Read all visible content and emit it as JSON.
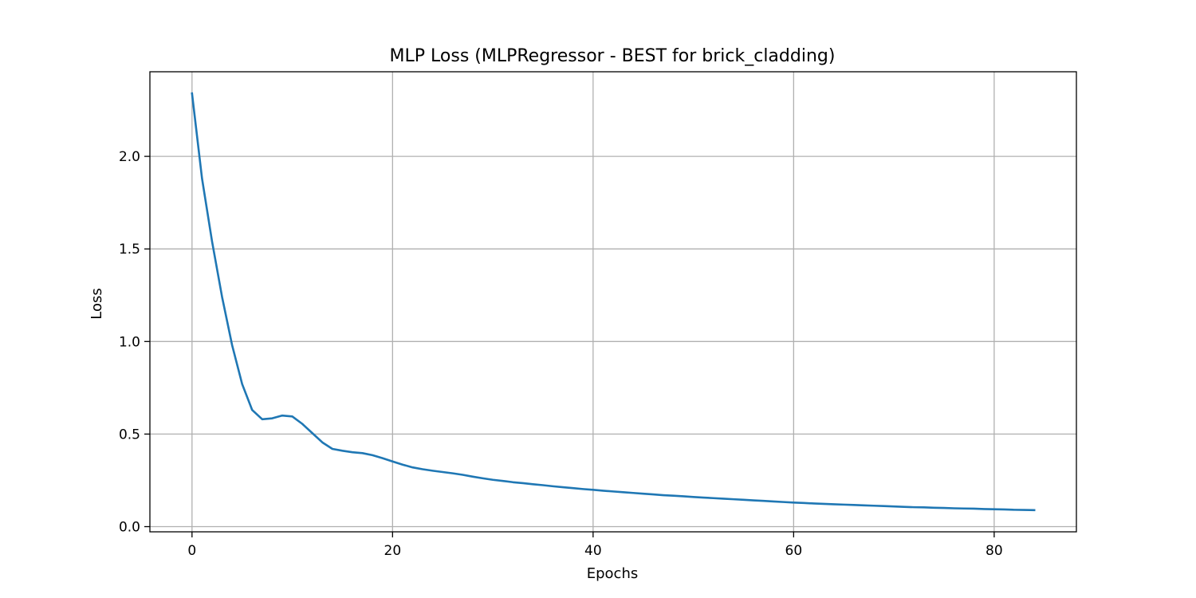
{
  "chart_data": {
    "type": "line",
    "title": "MLP Loss (MLPRegressor - BEST for brick_cladding)",
    "xlabel": "Epochs",
    "ylabel": "Loss",
    "xlim": [
      -4.2,
      88.2
    ],
    "ylim": [
      -0.028,
      2.457
    ],
    "xticks": [
      0,
      20,
      40,
      60,
      80
    ],
    "yticks": [
      0.0,
      0.5,
      1.0,
      1.5,
      2.0
    ],
    "xtick_labels": [
      "0",
      "20",
      "40",
      "60",
      "80"
    ],
    "ytick_labels": [
      "0.0",
      "0.5",
      "1.0",
      "1.5",
      "2.0"
    ],
    "grid": true,
    "series": [
      {
        "color": "#1f77b4",
        "x": [
          0,
          1,
          2,
          3,
          4,
          5,
          6,
          7,
          8,
          9,
          10,
          11,
          12,
          13,
          14,
          15,
          16,
          17,
          18,
          19,
          20,
          21,
          22,
          23,
          24,
          25,
          26,
          27,
          28,
          29,
          30,
          31,
          32,
          33,
          34,
          35,
          36,
          37,
          38,
          39,
          40,
          41,
          42,
          43,
          44,
          45,
          46,
          47,
          48,
          49,
          50,
          51,
          52,
          53,
          54,
          55,
          56,
          57,
          58,
          59,
          60,
          61,
          62,
          63,
          64,
          65,
          66,
          67,
          68,
          69,
          70,
          71,
          72,
          73,
          74,
          75,
          76,
          77,
          78,
          79,
          80,
          81,
          82,
          83,
          84
        ],
        "y": [
          2.34,
          1.88,
          1.54,
          1.24,
          0.98,
          0.77,
          0.63,
          0.58,
          0.585,
          0.6,
          0.595,
          0.555,
          0.505,
          0.455,
          0.42,
          0.41,
          0.402,
          0.397,
          0.386,
          0.37,
          0.352,
          0.335,
          0.32,
          0.31,
          0.302,
          0.295,
          0.288,
          0.28,
          0.27,
          0.261,
          0.253,
          0.247,
          0.24,
          0.235,
          0.229,
          0.224,
          0.218,
          0.213,
          0.208,
          0.203,
          0.199,
          0.194,
          0.19,
          0.186,
          0.182,
          0.178,
          0.174,
          0.17,
          0.167,
          0.164,
          0.16,
          0.157,
          0.154,
          0.151,
          0.148,
          0.145,
          0.142,
          0.139,
          0.136,
          0.133,
          0.13,
          0.128,
          0.125,
          0.123,
          0.121,
          0.119,
          0.117,
          0.115,
          0.113,
          0.111,
          0.109,
          0.107,
          0.105,
          0.104,
          0.102,
          0.101,
          0.099,
          0.098,
          0.097,
          0.095,
          0.094,
          0.093,
          0.091,
          0.09,
          0.089
        ]
      }
    ]
  }
}
